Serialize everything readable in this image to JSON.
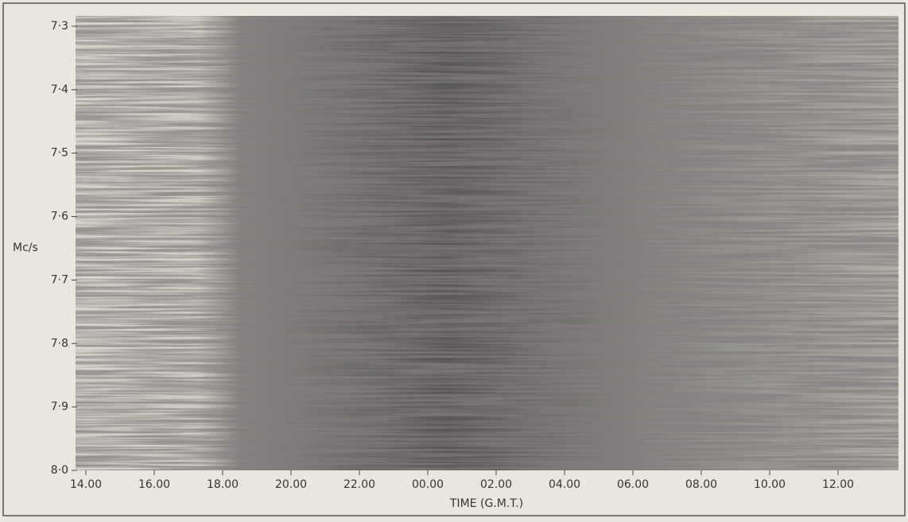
{
  "chart_data": {
    "type": "image",
    "ylabel": "Mc/s",
    "xlabel": "TIME (G.M.T.)",
    "categories": [
      "14.00",
      "16.00",
      "18.00",
      "20.00",
      "22.00",
      "00.00",
      "02.00",
      "04.00",
      "06.00",
      "08.00",
      "10.00",
      "12.00"
    ],
    "ylim": [
      8.0,
      7.3
    ],
    "yticks": [
      {
        "value": 7.3,
        "label": "7·3"
      },
      {
        "value": 7.4,
        "label": "7·4"
      },
      {
        "value": 7.5,
        "label": "7·5"
      },
      {
        "value": 7.6,
        "label": "7·6"
      },
      {
        "value": 7.7,
        "label": "7·7"
      },
      {
        "value": 7.8,
        "label": "7·8"
      },
      {
        "value": 7.9,
        "label": "7·9"
      },
      {
        "value": 8.0,
        "label": "8·0"
      }
    ]
  }
}
